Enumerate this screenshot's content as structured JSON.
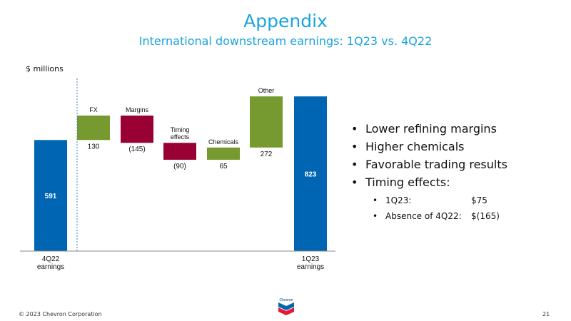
{
  "slide": {
    "title": "Appendix",
    "subtitle": "International downstream earnings: 1Q23 vs. 4Q22",
    "unit_label": "$ millions",
    "footer": "© 2023 Chevron Corporation",
    "page_number": "21",
    "logo_text": "Chevron"
  },
  "bullets": [
    {
      "text": "Lower refining margins"
    },
    {
      "text": "Higher chemicals"
    },
    {
      "text": "Favorable trading results"
    },
    {
      "text": "Timing effects:"
    }
  ],
  "sub_bullets": [
    {
      "label": "1Q23:",
      "value": "$75"
    },
    {
      "label": "Absence of 4Q22:",
      "value": "$(165)"
    }
  ],
  "chart_data": {
    "type": "bar",
    "subtype": "waterfall",
    "unit": "$ millions",
    "bars": [
      {
        "category": "4Q22 earnings",
        "value": 591,
        "label": "591",
        "kind": "total"
      },
      {
        "category": "FX",
        "value": 130,
        "label": "130",
        "kind": "increase"
      },
      {
        "category": "Margins",
        "value": -145,
        "label": "(145)",
        "kind": "decrease"
      },
      {
        "category": "Timing effects",
        "value": -90,
        "label": "(90)",
        "kind": "decrease"
      },
      {
        "category": "Chemicals",
        "value": 65,
        "label": "65",
        "kind": "increase"
      },
      {
        "category": "Other",
        "value": 272,
        "label": "272",
        "kind": "increase"
      },
      {
        "category": "1Q23 earnings",
        "value": 823,
        "label": "823",
        "kind": "total"
      }
    ],
    "colors": {
      "total": "#0066b3",
      "increase": "#769a30",
      "decrease": "#990033"
    },
    "separator_after_index": 0
  }
}
